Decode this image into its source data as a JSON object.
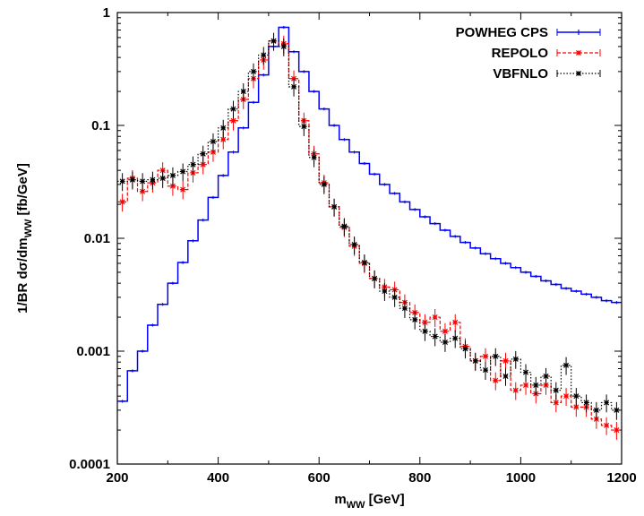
{
  "chart_data": {
    "type": "line",
    "xlabel": "m_WW [GeV]",
    "ylabel": "1/BR dσ/dm_WW [fb/GeV]",
    "xlim": [
      200,
      1200
    ],
    "ylim": [
      0.0001,
      1
    ],
    "yscale": "log",
    "x_ticks": [
      "200",
      "400",
      "600",
      "800",
      "1000",
      "1200"
    ],
    "y_ticks": [
      "0.0001",
      "0.001",
      "0.01",
      "0.1",
      "1"
    ],
    "legend_position": "top-right",
    "bin_width": 20,
    "series": [
      {
        "name": "POWHEG CPS",
        "color": "#0000ff",
        "style": "solid-step",
        "x": [
          200,
          220,
          240,
          260,
          280,
          300,
          320,
          340,
          360,
          380,
          400,
          420,
          440,
          460,
          480,
          500,
          520,
          540,
          560,
          580,
          600,
          620,
          640,
          660,
          680,
          700,
          720,
          740,
          760,
          780,
          800,
          820,
          840,
          860,
          880,
          900,
          920,
          940,
          960,
          980,
          1000,
          1020,
          1040,
          1060,
          1080,
          1100,
          1120,
          1140,
          1160,
          1180
        ],
        "y": [
          0.00036,
          0.00067,
          0.001,
          0.0017,
          0.0026,
          0.004,
          0.0061,
          0.0095,
          0.0145,
          0.023,
          0.036,
          0.058,
          0.095,
          0.16,
          0.28,
          0.5,
          0.74,
          0.45,
          0.3,
          0.2,
          0.14,
          0.1,
          0.075,
          0.058,
          0.046,
          0.037,
          0.03,
          0.025,
          0.021,
          0.018,
          0.0155,
          0.0135,
          0.0118,
          0.0104,
          0.0092,
          0.0082,
          0.0073,
          0.0066,
          0.006,
          0.0055,
          0.005,
          0.0046,
          0.0042,
          0.0039,
          0.0036,
          0.0034,
          0.0032,
          0.003,
          0.0028,
          0.0027
        ]
      },
      {
        "name": "REPOLO",
        "color": "#ff0000",
        "style": "dashed-step",
        "x": [
          200,
          220,
          240,
          260,
          280,
          300,
          320,
          340,
          360,
          380,
          400,
          420,
          440,
          460,
          480,
          500,
          520,
          540,
          560,
          580,
          600,
          620,
          640,
          660,
          680,
          700,
          720,
          740,
          760,
          780,
          800,
          820,
          840,
          860,
          880,
          900,
          920,
          940,
          960,
          980,
          1000,
          1020,
          1040,
          1060,
          1080,
          1100,
          1120,
          1140,
          1160,
          1180
        ],
        "y": [
          0.021,
          0.034,
          0.026,
          0.031,
          0.04,
          0.029,
          0.027,
          0.038,
          0.045,
          0.058,
          0.075,
          0.11,
          0.17,
          0.26,
          0.38,
          0.56,
          0.53,
          0.26,
          0.11,
          0.056,
          0.031,
          0.019,
          0.0125,
          0.0085,
          0.006,
          0.0044,
          0.0037,
          0.0035,
          0.0027,
          0.0022,
          0.0018,
          0.002,
          0.0015,
          0.0018,
          0.0011,
          0.00082,
          0.0009,
          0.00055,
          0.00082,
          0.00045,
          0.0005,
          0.00042,
          0.0005,
          0.00035,
          0.0004,
          0.00032,
          0.00032,
          0.00025,
          0.00022,
          0.0002
        ]
      },
      {
        "name": "VBFNLO",
        "color": "#000000",
        "style": "dotted-step",
        "x": [
          200,
          220,
          240,
          260,
          280,
          300,
          320,
          340,
          360,
          380,
          400,
          420,
          440,
          460,
          480,
          500,
          520,
          540,
          560,
          580,
          600,
          620,
          640,
          660,
          680,
          700,
          720,
          740,
          760,
          780,
          800,
          820,
          840,
          860,
          880,
          900,
          920,
          940,
          960,
          980,
          1000,
          1020,
          1040,
          1060,
          1080,
          1100,
          1120,
          1140,
          1160,
          1180
        ],
        "y": [
          0.032,
          0.033,
          0.032,
          0.033,
          0.034,
          0.036,
          0.039,
          0.045,
          0.056,
          0.072,
          0.095,
          0.14,
          0.2,
          0.3,
          0.42,
          0.56,
          0.5,
          0.22,
          0.098,
          0.052,
          0.03,
          0.019,
          0.0128,
          0.0088,
          0.0061,
          0.0044,
          0.0034,
          0.003,
          0.0024,
          0.0019,
          0.0015,
          0.00135,
          0.0012,
          0.0013,
          0.00105,
          0.00082,
          0.00068,
          0.0009,
          0.0006,
          0.00085,
          0.00065,
          0.0005,
          0.0006,
          0.00045,
          0.00075,
          0.0004,
          0.00035,
          0.0003,
          0.00035,
          0.0003
        ]
      }
    ]
  }
}
